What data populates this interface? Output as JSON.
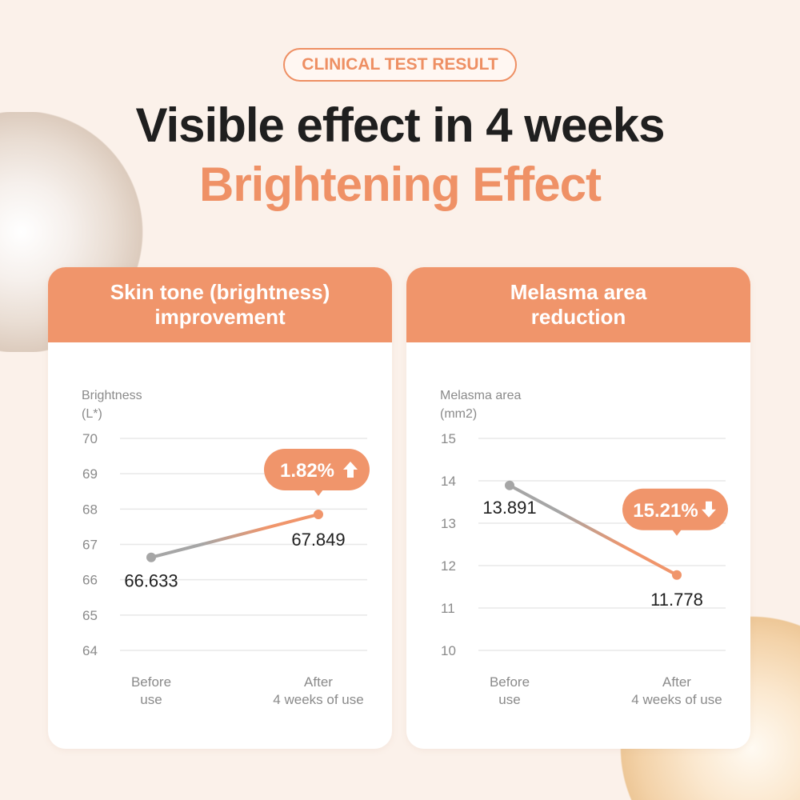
{
  "badge": "CLINICAL TEST RESULT",
  "headline": "Visible effect in 4 weeks",
  "subheadline": "Brightening Effect",
  "colors": {
    "accent": "#f0956b",
    "before": "#a6a6a6",
    "grid": "#e8e8e8"
  },
  "chart_data": [
    {
      "type": "line",
      "title_lines": [
        "Skin tone (brightness)",
        "improvement"
      ],
      "ylabel_lines": [
        "Brightness",
        "(L*)"
      ],
      "categories": [
        [
          "Before",
          "use"
        ],
        [
          "After",
          "4 weeks of use"
        ]
      ],
      "values": [
        66.633,
        67.849
      ],
      "value_labels": [
        "66.633",
        "67.849"
      ],
      "ylim": [
        64,
        70
      ],
      "yticks": [
        70,
        69,
        68,
        67,
        66,
        65,
        64
      ],
      "callout": "1.82%",
      "callout_icon": "arrow-up-icon",
      "grid": true
    },
    {
      "type": "line",
      "title_lines": [
        "Melasma area",
        "reduction"
      ],
      "ylabel_lines": [
        "Melasma area",
        "(mm2)"
      ],
      "categories": [
        [
          "Before",
          "use"
        ],
        [
          "After",
          "4 weeks of use"
        ]
      ],
      "values": [
        13.891,
        11.778
      ],
      "value_labels": [
        "13.891",
        "11.778"
      ],
      "ylim": [
        10,
        15
      ],
      "yticks": [
        15,
        14,
        13,
        12,
        11,
        10
      ],
      "callout": "15.21%",
      "callout_icon": "arrow-down-icon",
      "grid": true
    }
  ]
}
